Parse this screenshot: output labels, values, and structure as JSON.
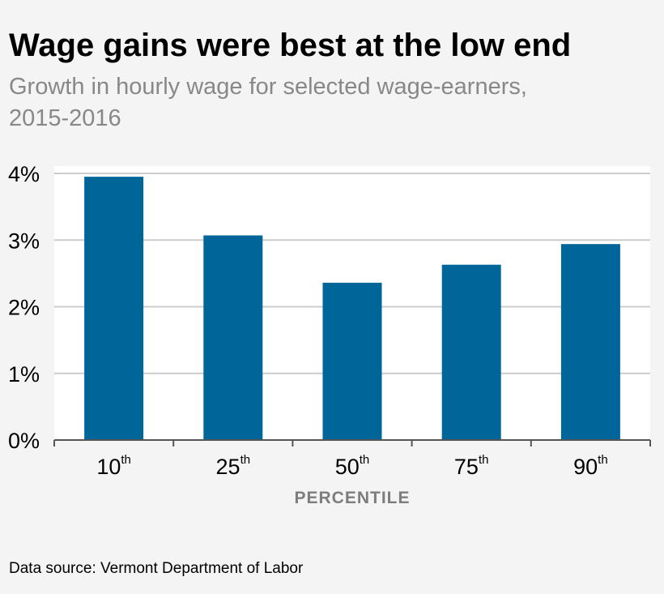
{
  "colors": {
    "background": "#f4f4f4",
    "plot_background": "#ffffff",
    "bar": "#006699",
    "grid": "#cccccc",
    "axis": "#555555",
    "xlabel": "#7d7d7d",
    "subtitle": "#888888"
  },
  "header": {
    "title": "Wage gains were best at the low end",
    "subtitle": "Growth in hourly wage for selected wage-earners, 2015-2016"
  },
  "footer": {
    "source": "Data source: Vermont Department of Labor"
  },
  "chart_data": {
    "type": "bar",
    "title": "Wage gains were best at the low end",
    "subtitle": "Growth in hourly wage for selected wage-earners, 2015-2016",
    "categories": [
      {
        "label": "10",
        "suffix": "th"
      },
      {
        "label": "25",
        "suffix": "th"
      },
      {
        "label": "50",
        "suffix": "th"
      },
      {
        "label": "75",
        "suffix": "th"
      },
      {
        "label": "90",
        "suffix": "th"
      }
    ],
    "values": [
      3.95,
      3.07,
      2.36,
      2.63,
      2.94
    ],
    "xlabel": "PERCENTILE",
    "ylabel": "",
    "ylim": [
      0,
      4
    ],
    "yticks": [
      0,
      1,
      2,
      3,
      4
    ],
    "ytick_labels": [
      "0%",
      "1%",
      "2%",
      "3%",
      "4%"
    ],
    "grid": true,
    "legend": "none"
  }
}
